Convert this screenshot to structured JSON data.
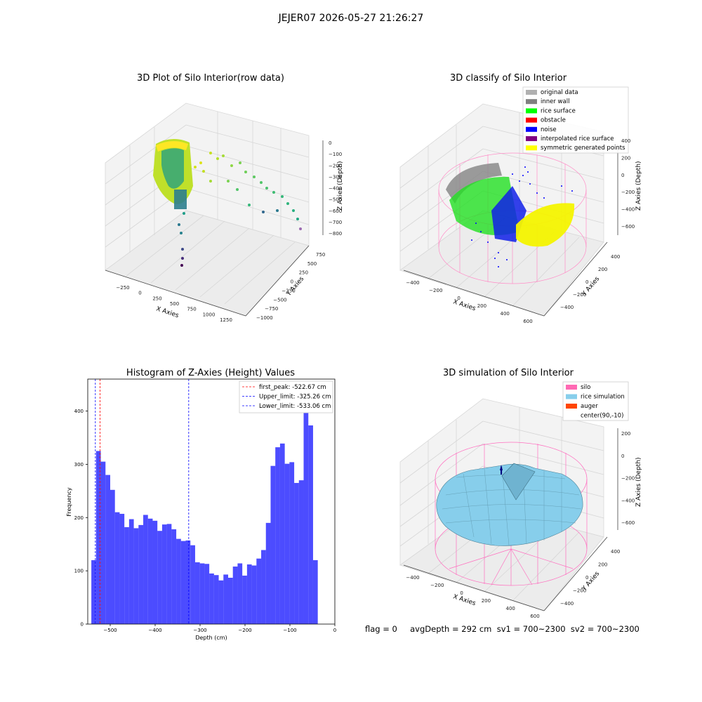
{
  "figure": {
    "suptitle": "JEJER07 2026-05-27 21:26:27"
  },
  "panels": {
    "p1": {
      "title": "3D Plot of Silo Interior(row data)",
      "xlabel": "X Axies",
      "ylabel": "Y Axies",
      "zlabel": "Z Axies (Depth)",
      "xticks": [
        "−250",
        "0",
        "250",
        "500",
        "750",
        "1000",
        "1250"
      ],
      "yticks": [
        "750",
        "500",
        "250",
        "0",
        "−250",
        "−500",
        "−750",
        "−1000"
      ],
      "zticks": [
        "0",
        "−100",
        "−200",
        "−300",
        "−400",
        "−500",
        "−600",
        "−700",
        "−800"
      ]
    },
    "p2": {
      "title": "3D classify of Silo Interior",
      "xlabel": "X Axies",
      "ylabel": "Y Axies",
      "zlabel": "Z Axies (Depth)",
      "xticks": [
        "−400",
        "−200",
        "0",
        "200",
        "400",
        "600"
      ],
      "yticks": [
        "400",
        "200",
        "0",
        "−200",
        "−400"
      ],
      "zticks": [
        "400",
        "200",
        "0",
        "−200",
        "−400",
        "−600"
      ],
      "legend": [
        {
          "label": "original data",
          "color": "#b0b0b0"
        },
        {
          "label": "inner wall",
          "color": "#808080"
        },
        {
          "label": "rice surface",
          "color": "#00ff00"
        },
        {
          "label": "obstacle",
          "color": "#ff0000"
        },
        {
          "label": "noise",
          "color": "#0000ff"
        },
        {
          "label": "interpolated rice surface",
          "color": "#800080"
        },
        {
          "label": "symmetric generated points",
          "color": "#ffff00"
        }
      ]
    },
    "p4": {
      "title": "3D simulation of Silo Interior",
      "xlabel": "X Axies",
      "ylabel": "Y Axies",
      "zlabel": "Z Axies (Depth)",
      "xticks": [
        "−400",
        "−200",
        "0",
        "200",
        "400",
        "600"
      ],
      "yticks": [
        "400",
        "200",
        "0",
        "−200",
        "−400"
      ],
      "zticks": [
        "200",
        "0",
        "−200",
        "−400",
        "−600"
      ],
      "legend": [
        {
          "label": "silo",
          "color": "#ff69b4"
        },
        {
          "label": "rice simulation",
          "color": "#87ceeb"
        },
        {
          "label": "auger",
          "color": "#ff4500"
        },
        {
          "label": "center(90,-10)",
          "color": ""
        }
      ]
    }
  },
  "chart_data": [
    {
      "type": "bar",
      "title": "Histogram of Z-Axies (Height) Values",
      "xlabel": "Depth (cm)",
      "ylabel": "Frequency",
      "xlim": [
        -550,
        0
      ],
      "ylim": [
        0,
        460
      ],
      "xticks": [
        -500,
        -400,
        -300,
        -200,
        -100,
        0
      ],
      "xtick_labels": [
        "−500",
        "−400",
        "−300",
        "−200",
        "−100",
        "0"
      ],
      "yticks": [
        0,
        100,
        200,
        300,
        400
      ],
      "bar_color": "#0000ff",
      "bin_edges_start": -542,
      "bin_width": 10.5,
      "values": [
        120,
        325,
        305,
        280,
        252,
        210,
        207,
        182,
        197,
        180,
        186,
        205,
        198,
        194,
        175,
        187,
        188,
        178,
        160,
        156,
        157,
        148,
        116,
        114,
        113,
        95,
        92,
        82,
        93,
        87,
        108,
        114,
        91,
        112,
        110,
        123,
        139,
        190,
        297,
        332,
        339,
        301,
        304,
        265,
        270,
        440,
        373,
        120
      ],
      "vlines": [
        {
          "label": "first_peak: -522.67 cm",
          "x": -522.67,
          "color": "#ff0000"
        },
        {
          "label": "Upper_limit: -325.26 cm",
          "x": -325.26,
          "color": "#0000ff"
        },
        {
          "label": "Lower_limit: -533.06 cm",
          "x": -533.06,
          "color": "#0000ff"
        }
      ],
      "legend_position": "top-right"
    }
  ],
  "footer": "flag = 0     avgDepth = 292 cm  sv1 = 700~2300  sv2 = 700~2300"
}
